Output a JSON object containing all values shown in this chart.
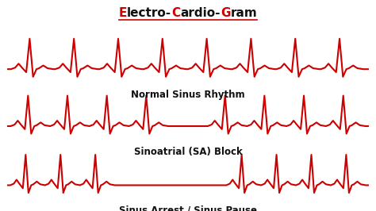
{
  "title_parts": [
    [
      "E",
      "#cc0000"
    ],
    [
      "lectro-",
      "#111111"
    ],
    [
      "C",
      "#cc0000"
    ],
    [
      "ardio-",
      "#111111"
    ],
    [
      "G",
      "#cc0000"
    ],
    [
      "ram",
      "#111111"
    ]
  ],
  "title_underline_color": "#cc0000",
  "labels": [
    "Normal Sinus Rhythm",
    "Sinoatrial (SA) Block",
    "Sinus Arrest / Sinus Pause"
  ],
  "ecg_color": "#cc0000",
  "bg_color": "#ffffff",
  "line_width": 1.5,
  "label_fontsize": 8.5,
  "title_fontsize": 11
}
